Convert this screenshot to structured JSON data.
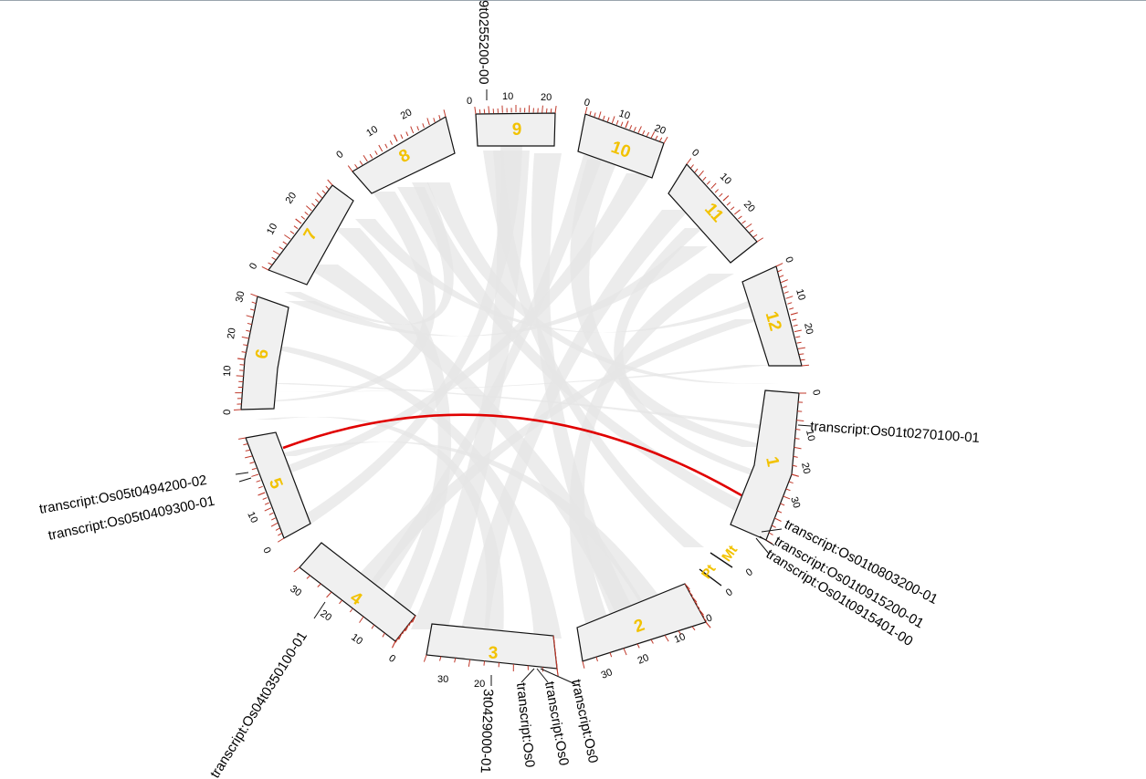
{
  "diagram": {
    "type": "circos-synteny-plot",
    "link_color": "#e6e6e6",
    "highlight_color": "#e00000",
    "chromosome_label_color": "#f2c200",
    "tick_color": "#c0392b",
    "chromosomes": [
      {
        "name": "1",
        "ticks": [
          "0",
          "10",
          "20",
          "30"
        ]
      },
      {
        "name": "2",
        "ticks": [
          "0",
          "10",
          "20",
          "30"
        ]
      },
      {
        "name": "3",
        "ticks": [
          "20",
          "30"
        ]
      },
      {
        "name": "4",
        "ticks": [
          "0",
          "10",
          "20",
          "30"
        ]
      },
      {
        "name": "5",
        "ticks": [
          "0",
          "10"
        ]
      },
      {
        "name": "6",
        "ticks": [
          "0",
          "10",
          "20",
          "30"
        ]
      },
      {
        "name": "7",
        "ticks": [
          "0",
          "10",
          "20"
        ]
      },
      {
        "name": "8",
        "ticks": [
          "0",
          "10",
          "20"
        ]
      },
      {
        "name": "9",
        "ticks": [
          "0",
          "10",
          "20"
        ]
      },
      {
        "name": "10",
        "ticks": [
          "0",
          "10",
          "20"
        ]
      },
      {
        "name": "11",
        "ticks": [
          "0",
          "10",
          "20"
        ]
      },
      {
        "name": "12",
        "ticks": [
          "0",
          "10",
          "20"
        ]
      },
      {
        "name": "Pt",
        "ticks": [
          "0"
        ]
      },
      {
        "name": "Mt",
        "ticks": [
          "0"
        ]
      }
    ],
    "gene_labels": [
      "transcript:Os01t0270100-01",
      "transcript:Os01t0803200-01",
      "transcript:Os01t0915200-01",
      "transcript:Os01t0915401-00",
      "transcript:Os05t0494200-02",
      "transcript:Os05t0409300-01",
      "transcript:Os04t0350100-01",
      "3t0429000-01",
      "transcript:Os0",
      "transcript:Os0",
      "transcript:Os0",
      "9t0255200-00"
    ]
  }
}
